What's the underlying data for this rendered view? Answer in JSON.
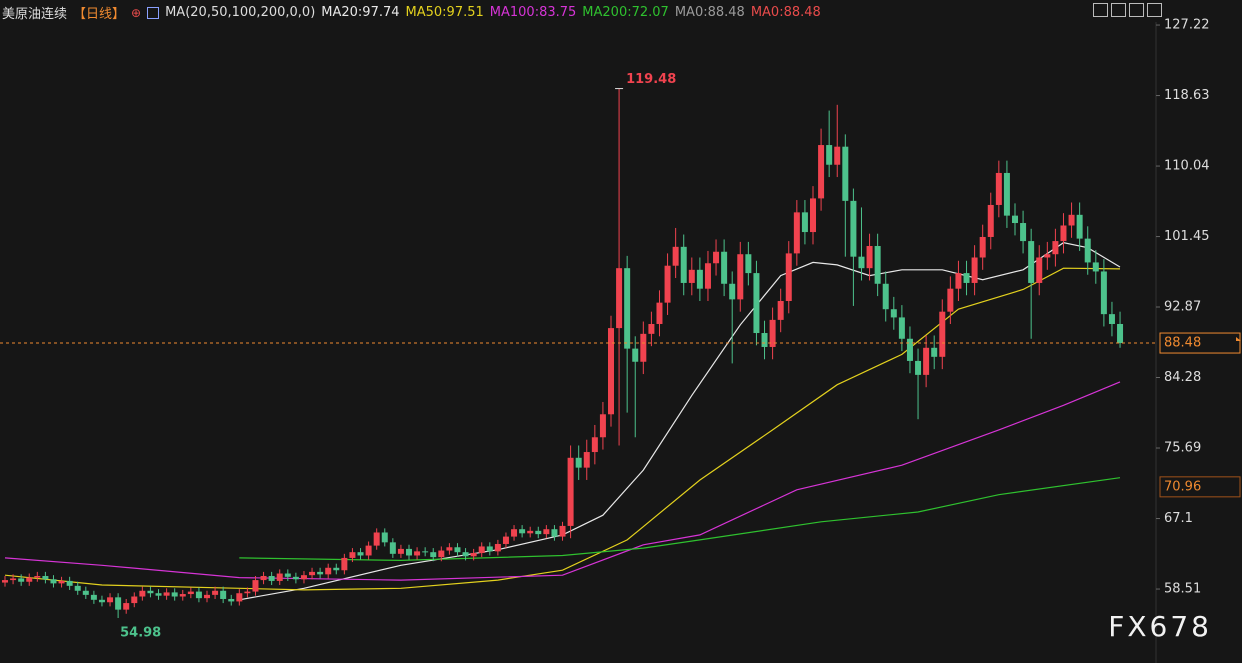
{
  "chart_data": {
    "type": "candlestick",
    "title": "美原油连续",
    "period": "【日线】",
    "indicator": "MA(20,50,100,200,0,0)",
    "up_color": "#f0434f",
    "down_color": "#4dc28c",
    "open": [
      59.3,
      59.6,
      59.8,
      59.4,
      59.9,
      60.1,
      59.7,
      59.2,
      59.5,
      58.9,
      58.3,
      57.8,
      57.2,
      56.9,
      57.5,
      56.0,
      56.8,
      57.6,
      58.3,
      58.0,
      57.7,
      58.1,
      57.6,
      57.9,
      58.2,
      57.4,
      57.8,
      58.3,
      57.3,
      57.0,
      58.0,
      58.2,
      59.6,
      60.1,
      59.5,
      60.4,
      60.0,
      59.7,
      60.2,
      60.6,
      60.3,
      61.1,
      60.8,
      62.3,
      63.0,
      62.6,
      63.8,
      65.4,
      64.2,
      62.8,
      63.4,
      62.6,
      63.1,
      63.0,
      62.4,
      63.2,
      63.6,
      63.0,
      62.5,
      62.9,
      63.7,
      63.1,
      64.0,
      64.9,
      65.8,
      65.3,
      65.6,
      65.2,
      65.8,
      64.9,
      66.2,
      74.5,
      73.3,
      75.2,
      77.0,
      79.8,
      90.3,
      97.6,
      87.8,
      86.2,
      89.6,
      90.8,
      93.4,
      97.9,
      100.2,
      95.8,
      97.4,
      95.1,
      98.2,
      99.6,
      95.7,
      93.8,
      99.3,
      97.0,
      89.7,
      88.0,
      91.3,
      93.6,
      99.4,
      104.4,
      102.0,
      106.1,
      112.6,
      110.2,
      112.4,
      105.8,
      99.0,
      97.6,
      100.3,
      95.7,
      92.6,
      91.6,
      89.0,
      86.3,
      84.6,
      87.9,
      86.8,
      92.3,
      95.1,
      97.0,
      95.8,
      98.9,
      101.4,
      105.3,
      109.2,
      104.0,
      103.1,
      100.9,
      95.8,
      98.9,
      99.3,
      100.9,
      102.8,
      104.1,
      101.2,
      98.3,
      97.2,
      92.0,
      90.8
    ],
    "high": [
      60.1,
      60.3,
      60.3,
      60.4,
      60.6,
      60.6,
      60.2,
      60.0,
      60.0,
      59.4,
      58.8,
      58.3,
      57.7,
      58.0,
      58.0,
      57.3,
      58.1,
      58.8,
      58.8,
      58.5,
      58.6,
      58.6,
      58.4,
      58.7,
      58.7,
      58.3,
      58.8,
      58.8,
      57.8,
      58.5,
      58.7,
      60.1,
      60.6,
      60.6,
      60.9,
      60.9,
      60.5,
      60.7,
      61.1,
      61.1,
      61.6,
      61.6,
      62.8,
      63.5,
      63.5,
      64.3,
      65.9,
      65.9,
      64.7,
      63.9,
      63.9,
      63.6,
      63.6,
      63.5,
      63.7,
      64.1,
      64.1,
      63.5,
      63.4,
      64.2,
      64.2,
      64.5,
      65.4,
      66.3,
      66.3,
      66.1,
      66.1,
      66.3,
      66.3,
      66.7,
      76.0,
      76.0,
      76.7,
      78.5,
      81.3,
      91.8,
      119.48,
      99.1,
      89.3,
      91.1,
      92.3,
      94.9,
      99.4,
      102.5,
      101.7,
      98.9,
      98.9,
      99.7,
      101.1,
      101.1,
      97.2,
      100.8,
      100.8,
      98.5,
      91.2,
      92.8,
      95.1,
      100.9,
      105.9,
      105.9,
      107.6,
      114.6,
      116.8,
      117.5,
      113.9,
      107.3,
      105.0,
      101.8,
      101.8,
      97.2,
      94.1,
      93.1,
      90.5,
      87.8,
      89.4,
      89.4,
      93.8,
      96.6,
      98.5,
      98.5,
      100.4,
      102.9,
      106.8,
      110.7,
      110.7,
      105.5,
      104.6,
      102.4,
      100.4,
      100.8,
      102.4,
      104.3,
      105.6,
      105.6,
      102.7,
      99.8,
      98.7,
      93.5,
      92.3
    ],
    "low": [
      58.8,
      59.1,
      58.9,
      58.9,
      59.4,
      59.2,
      58.7,
      58.7,
      58.4,
      57.8,
      57.3,
      56.7,
      56.4,
      56.4,
      54.98,
      55.5,
      56.3,
      57.1,
      57.5,
      57.2,
      57.2,
      57.1,
      57.1,
      57.4,
      56.9,
      56.9,
      57.3,
      56.8,
      56.5,
      56.5,
      57.5,
      57.7,
      59.1,
      59.0,
      59.0,
      59.5,
      59.2,
      59.2,
      59.7,
      59.8,
      59.8,
      60.3,
      60.3,
      61.8,
      62.1,
      62.1,
      63.3,
      63.7,
      62.3,
      62.3,
      62.1,
      62.1,
      62.5,
      61.9,
      61.9,
      62.7,
      62.5,
      62.0,
      62.0,
      62.4,
      62.6,
      62.6,
      63.5,
      64.4,
      64.8,
      64.8,
      64.7,
      64.7,
      64.4,
      64.4,
      64.7,
      71.8,
      71.8,
      73.7,
      75.5,
      78.3,
      76.0,
      80.0,
      77.0,
      84.7,
      88.1,
      89.3,
      91.9,
      96.4,
      94.3,
      94.3,
      93.6,
      93.6,
      96.7,
      94.2,
      86.0,
      92.3,
      95.5,
      88.2,
      86.5,
      86.5,
      89.8,
      92.1,
      97.9,
      100.5,
      100.5,
      104.6,
      108.7,
      108.7,
      99.0,
      93.0,
      96.1,
      96.1,
      94.2,
      91.1,
      90.1,
      87.5,
      84.8,
      79.2,
      83.1,
      85.3,
      85.3,
      90.8,
      93.6,
      94.3,
      94.3,
      97.4,
      99.9,
      103.8,
      102.5,
      101.6,
      99.4,
      89.0,
      94.3,
      97.4,
      97.8,
      99.4,
      101.3,
      99.7,
      96.8,
      95.7,
      90.5,
      89.3,
      87.9
    ],
    "close": [
      59.6,
      59.8,
      59.4,
      59.9,
      60.1,
      59.7,
      59.2,
      59.5,
      58.9,
      58.3,
      57.8,
      57.2,
      56.9,
      57.5,
      56.0,
      56.8,
      57.6,
      58.3,
      58.0,
      57.7,
      58.1,
      57.6,
      57.9,
      58.2,
      57.4,
      57.8,
      58.3,
      57.3,
      57.0,
      58.0,
      58.2,
      59.6,
      60.1,
      59.5,
      60.4,
      60.0,
      59.7,
      60.2,
      60.6,
      60.3,
      61.1,
      60.8,
      62.3,
      63.0,
      62.6,
      63.8,
      65.4,
      64.2,
      62.8,
      63.4,
      62.6,
      63.1,
      63.0,
      62.4,
      63.2,
      63.6,
      63.0,
      62.5,
      62.9,
      63.7,
      63.1,
      64.0,
      64.9,
      65.8,
      65.3,
      65.6,
      65.2,
      65.8,
      64.9,
      66.2,
      74.5,
      73.3,
      75.2,
      77.0,
      79.8,
      90.3,
      97.6,
      87.8,
      86.2,
      89.6,
      90.8,
      93.4,
      97.9,
      100.2,
      95.8,
      97.4,
      95.1,
      98.2,
      99.6,
      95.7,
      93.8,
      99.3,
      97.0,
      89.7,
      88.0,
      91.3,
      93.6,
      99.4,
      104.4,
      102.0,
      106.1,
      112.6,
      110.2,
      112.4,
      105.8,
      99.0,
      97.6,
      100.3,
      95.7,
      92.6,
      91.6,
      89.0,
      86.3,
      84.6,
      87.9,
      86.8,
      92.3,
      95.1,
      97.0,
      95.8,
      98.9,
      101.4,
      105.3,
      109.2,
      104.0,
      103.1,
      100.9,
      95.8,
      98.9,
      99.3,
      100.9,
      102.8,
      104.1,
      101.2,
      98.3,
      97.2,
      92.0,
      90.8,
      88.48
    ],
    "series": [
      {
        "name": "MA20:97.74",
        "color": "#e8e8e8",
        "x": [
          29,
          37,
          49,
          61,
          69,
          74,
          79,
          85,
          91,
          96,
          100,
          103,
          107,
          111,
          116,
          121,
          126,
          131,
          134,
          138
        ],
        "values": [
          57.2,
          58.6,
          61.4,
          63.3,
          65.1,
          67.5,
          73.0,
          82.1,
          90.7,
          96.7,
          98.3,
          98.0,
          96.7,
          97.4,
          97.4,
          96.2,
          97.4,
          100.7,
          100.1,
          97.74
        ]
      },
      {
        "name": "MA50:97.51",
        "color": "#e3d11e",
        "x": [
          0,
          12,
          37,
          49,
          61,
          69,
          77,
          86,
          95,
          103,
          111,
          118,
          126,
          131,
          138
        ],
        "values": [
          60.2,
          59.0,
          58.4,
          58.6,
          59.6,
          60.8,
          64.5,
          71.8,
          77.9,
          83.4,
          87.1,
          92.6,
          95.0,
          97.6,
          97.51
        ]
      },
      {
        "name": "MA100:83.75",
        "color": "#d634d6",
        "x": [
          0,
          12,
          29,
          49,
          69,
          79,
          86,
          98,
          111,
          123,
          131,
          138
        ],
        "values": [
          62.3,
          61.4,
          59.9,
          59.6,
          60.2,
          63.9,
          65.1,
          70.6,
          73.6,
          77.9,
          80.9,
          83.75
        ]
      },
      {
        "name": "MA200:72.07",
        "color": "#2fc12f",
        "x": [
          29,
          49,
          69,
          79,
          86,
          101,
          113,
          123,
          138
        ],
        "values": [
          62.3,
          62.0,
          62.6,
          63.5,
          64.5,
          66.7,
          67.9,
          70.0,
          72.07
        ]
      }
    ],
    "legend_extra": [
      {
        "name": "MA0:88.48",
        "color": "#9a9a9a"
      },
      {
        "name": "MA0:88.48",
        "color": "#e84b4b"
      }
    ],
    "price_marker": 70.96,
    "ylim": [
      49.5,
      130.27
    ],
    "yticks": [
      127.22,
      118.63,
      110.04,
      101.45,
      92.87,
      84.28,
      75.69,
      67.1,
      58.51
    ]
  },
  "watermark": "FX678"
}
